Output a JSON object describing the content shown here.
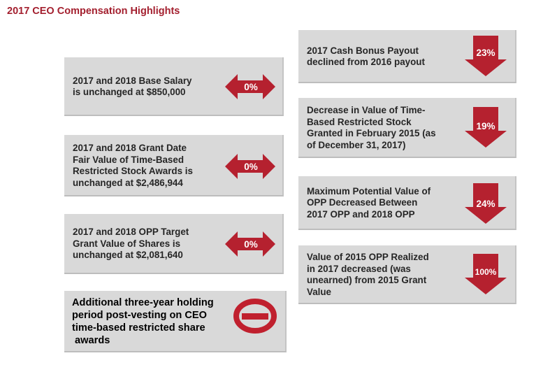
{
  "title": "2017 CEO Compensation Highlights",
  "colors": {
    "accent": "#a31f2e",
    "card": "#d9d9d9",
    "text": "#262626"
  },
  "left_items": [
    {
      "text": "2017 and 2018 Base Salary is unchanged at $850,000",
      "lines": [
        "2017 and 2018 Base Salary",
        "is unchanged at $850,000"
      ],
      "badge": "0%",
      "icon": "double-arrow-icon"
    },
    {
      "text": "2017 and 2018 Grant Date Fair Value of Time-Based Restricted Stock Awards is unchanged at $2,486,944",
      "lines": [
        "2017 and 2018 Grant Date",
        "Fair Value of Time-Based",
        "Restricted Stock Awards is",
        "unchanged at $2,486,944"
      ],
      "badge": "0%",
      "icon": "double-arrow-icon"
    },
    {
      "text": "2017 and 2018 OPP Target Grant Value of Shares is unchanged at $2,081,640",
      "lines": [
        "2017 and 2018 OPP Target",
        "Grant Value of Shares is",
        "unchanged at $2,081,640"
      ],
      "badge": "0%",
      "icon": "double-arrow-icon"
    },
    {
      "text": "Additional three-year holding period post-vesting on CEO time-based restricted share awards",
      "lines": [
        "Additional three-year holding",
        "period post-vesting on CEO",
        "time-based restricted share",
        " awards"
      ],
      "icon": "prohibited-icon"
    }
  ],
  "right_items": [
    {
      "text": "2017 Cash Bonus Payout declined from 2016 payout",
      "lines": [
        "2017 Cash Bonus Payout",
        "declined from 2016 payout"
      ],
      "badge": "23%",
      "icon": "down-arrow-icon"
    },
    {
      "text": "Decrease in Value of Time-Based Restricted Stock Granted in February 2015 (as of December 31, 2017)",
      "lines": [
        "Decrease in Value of Time-",
        "Based Restricted Stock",
        "Granted in February 2015 (as",
        "of December 31, 2017)"
      ],
      "badge": "19%",
      "icon": "down-arrow-icon"
    },
    {
      "text": "Maximum Potential Value of OPP Decreased Between 2017 OPP and 2018 OPP",
      "lines": [
        "Maximum Potential Value of",
        "OPP Decreased Between",
        "2017 OPP and 2018 OPP"
      ],
      "badge": "24%",
      "icon": "down-arrow-icon"
    },
    {
      "text": "Value of 2015 OPP Realized in 2017 decreased (was unearned) from 2015 Grant Value",
      "lines": [
        "Value of 2015 OPP Realized",
        "in 2017 decreased (was",
        "unearned) from 2015 Grant",
        "Value"
      ],
      "badge": "100%",
      "icon": "down-arrow-icon"
    }
  ]
}
